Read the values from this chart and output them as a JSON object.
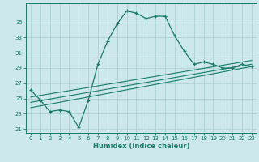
{
  "xlabel": "Humidex (Indice chaleur)",
  "bg_color": "#cce8ec",
  "line_color": "#1a7a6a",
  "grid_color": "#aacfd4",
  "xlim": [
    -0.5,
    23.5
  ],
  "ylim": [
    20.5,
    37.5
  ],
  "yticks": [
    21,
    23,
    25,
    27,
    29,
    31,
    33,
    35
  ],
  "xticks": [
    0,
    1,
    2,
    3,
    4,
    5,
    6,
    7,
    8,
    9,
    10,
    11,
    12,
    13,
    14,
    15,
    16,
    17,
    18,
    19,
    20,
    21,
    22,
    23
  ],
  "line1_x": [
    0,
    1,
    2,
    3,
    4,
    5,
    6,
    7,
    8,
    9,
    10,
    11,
    12,
    13,
    14,
    15,
    16,
    17,
    18,
    19,
    20,
    21,
    22,
    23
  ],
  "line1_y": [
    26.1,
    24.8,
    23.3,
    23.5,
    23.3,
    21.2,
    24.8,
    29.5,
    32.5,
    34.8,
    36.5,
    36.2,
    35.5,
    35.8,
    35.8,
    33.2,
    31.2,
    29.5,
    29.8,
    29.5,
    29.0,
    29.0,
    29.5,
    29.2
  ],
  "line2_x": [
    0,
    23
  ],
  "line2_y": [
    23.8,
    29.2
  ],
  "line3_x": [
    0,
    23
  ],
  "line3_y": [
    24.5,
    29.5
  ],
  "line4_x": [
    0,
    23
  ],
  "line4_y": [
    25.2,
    30.0
  ]
}
